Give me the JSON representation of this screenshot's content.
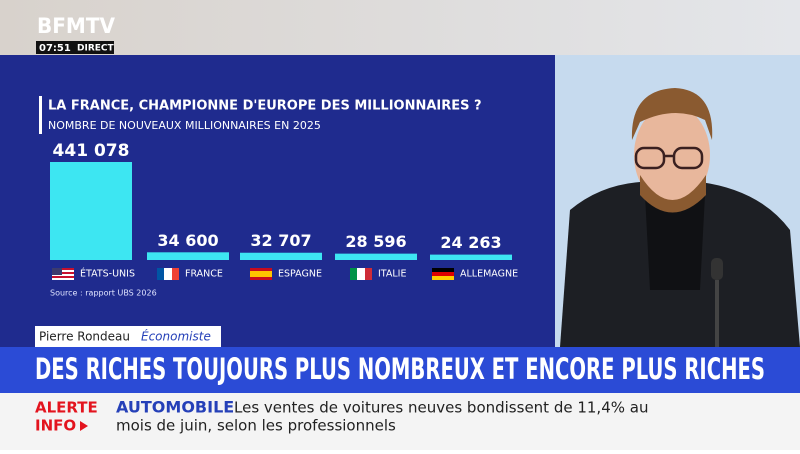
{
  "header": {
    "channel": "BFMTV",
    "time": "07:51",
    "live": "DIRECT"
  },
  "chart_data": {
    "type": "bar",
    "title": "LA FRANCE, CHAMPIONNE D'EUROPE DES MILLIONNAIRES ?",
    "subtitle": "NOMBRE DE NOUVEAUX MILLIONNAIRES EN 2025",
    "categories": [
      "ÉTATS-UNIS",
      "FRANCE",
      "ESPAGNE",
      "ITALIE",
      "ALLEMAGNE"
    ],
    "values": [
      441078,
      34600,
      32707,
      28596,
      24263
    ],
    "value_labels": [
      "441 078",
      "34 600",
      "32 707",
      "28 596",
      "24 263"
    ],
    "color": "#3de6f2",
    "source": "Source : rapport UBS 2026"
  },
  "guest": {
    "name": "Pierre Rondeau",
    "role": "Économiste"
  },
  "headline": "DES RICHES TOUJOURS PLUS NOMBREUX ET ENCORE PLUS RICHES",
  "ticker": {
    "alert": [
      "ALERTE",
      "INFO"
    ],
    "topic": "AUTOMOBILE",
    "lines": [
      "Les ventes de voitures neuves bondissent de 11,4% au",
      "mois de juin, selon les professionnels"
    ]
  }
}
